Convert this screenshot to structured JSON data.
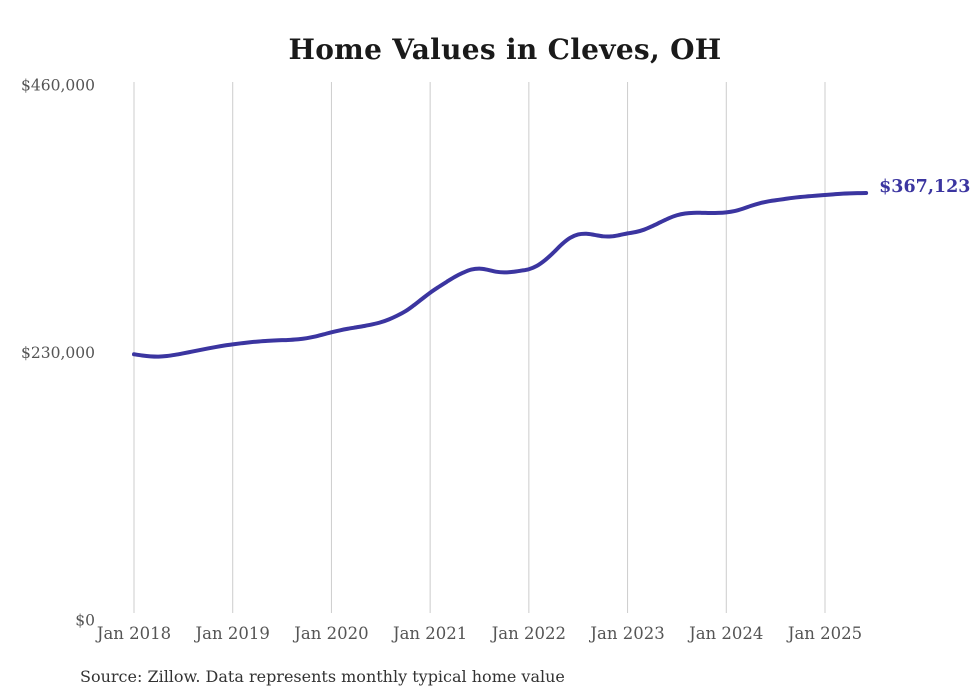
{
  "chart": {
    "title": "Home Values in Cleves, OH",
    "source": "Source: Zillow. Data represents monthly typical home value"
  },
  "chart_data": {
    "type": "line",
    "title": "Home Values in Cleves, OH",
    "series_name": "Monthly typical home value",
    "x_start": "Jan 2018",
    "x_end": "Jun 2025",
    "months_per_tick": 12,
    "x_tick_labels": [
      "Jan 2018",
      "Jan 2019",
      "Jan 2020",
      "Jan 2021",
      "Jan 2022",
      "Jan 2023",
      "Jan 2024",
      "Jan 2025"
    ],
    "y_ticks": [
      {
        "label": "$0",
        "value": 0
      },
      {
        "label": "$230,000",
        "value": 230000
      },
      {
        "label": "$460,000",
        "value": 460000
      }
    ],
    "ylim": [
      0,
      460000
    ],
    "grid": "vertical-only",
    "legend": "none",
    "line_color": "#3b35a0",
    "grid_color": "#cccccc",
    "tick_color": "#555555",
    "last_value": 367123,
    "last_value_label": "$367,123",
    "values": [
      228500,
      227400,
      226700,
      226500,
      227000,
      228000,
      229300,
      230700,
      232100,
      233500,
      234800,
      236000,
      237000,
      237900,
      238700,
      239400,
      239900,
      240300,
      240600,
      240900,
      241400,
      242300,
      243700,
      245500,
      247400,
      249000,
      250400,
      251600,
      252800,
      254200,
      256000,
      258500,
      261700,
      265500,
      270500,
      276000,
      281400,
      286200,
      290700,
      295000,
      298600,
      301300,
      302100,
      301100,
      299500,
      298900,
      299300,
      300300,
      301600,
      304600,
      309600,
      316000,
      323000,
      328500,
      331500,
      332100,
      331100,
      329900,
      329800,
      330900,
      332400,
      333600,
      335600,
      338600,
      342000,
      345400,
      348000,
      349500,
      350100,
      350100,
      349900,
      350000,
      350500,
      351600,
      353600,
      356100,
      358200,
      359800,
      360900,
      361900,
      362900,
      363700,
      364300,
      364900,
      365400,
      366000,
      366500,
      366800,
      367000,
      367123
    ]
  }
}
